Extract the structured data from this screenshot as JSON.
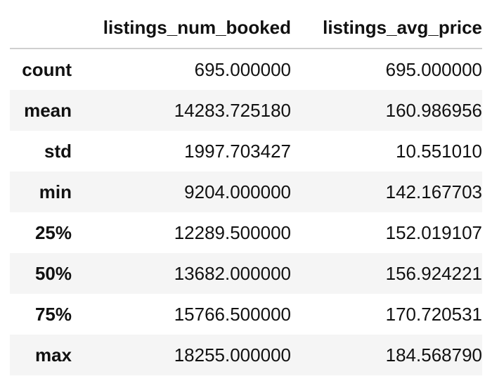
{
  "table": {
    "columns": [
      "listings_num_booked",
      "listings_avg_price"
    ],
    "rows": [
      {
        "label": "count",
        "values": [
          "695.000000",
          "695.000000"
        ]
      },
      {
        "label": "mean",
        "values": [
          "14283.725180",
          "160.986956"
        ]
      },
      {
        "label": "std",
        "values": [
          "1997.703427",
          "10.551010"
        ]
      },
      {
        "label": "min",
        "values": [
          "9204.000000",
          "142.167703"
        ]
      },
      {
        "label": "25%",
        "values": [
          "12289.500000",
          "152.019107"
        ]
      },
      {
        "label": "50%",
        "values": [
          "13682.000000",
          "156.924221"
        ]
      },
      {
        "label": "75%",
        "values": [
          "15766.500000",
          "170.720531"
        ]
      },
      {
        "label": "max",
        "values": [
          "18255.000000",
          "184.568790"
        ]
      }
    ]
  },
  "colors": {
    "stripe": "#f5f5f5",
    "header_rule": "#cfcfcf",
    "text": "#111111"
  }
}
